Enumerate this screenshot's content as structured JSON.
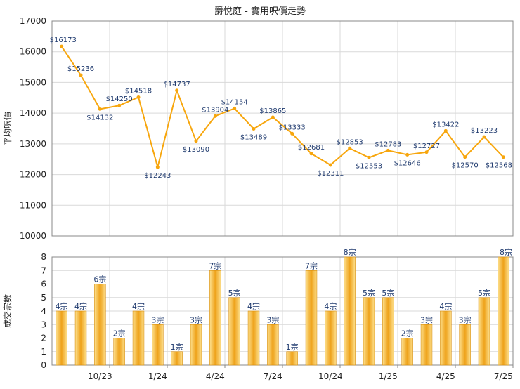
{
  "colors": {
    "line": "#f7a60d",
    "bar_light": "#fde08e",
    "bar_dark": "#eea21a",
    "bar_stroke": "#d88e0c",
    "grid": "#d9d9d9",
    "axis": "#888888",
    "text": "#222222",
    "label_blue": "#1f3a6e"
  },
  "chart_data": [
    {
      "type": "line",
      "title": "爵悅庭 - 實用呎價走勢",
      "ylabel": "平均呎價",
      "ylim": [
        10000,
        17000
      ],
      "yticks": [
        10000,
        11000,
        12000,
        13000,
        14000,
        15000,
        16000,
        17000
      ],
      "grid": true,
      "values": [
        16173,
        15236,
        14132,
        14250,
        14518,
        12243,
        14737,
        13090,
        13904,
        14154,
        13489,
        13865,
        13333,
        12681,
        12311,
        12853,
        12553,
        12783,
        12646,
        12727,
        13422,
        12570,
        13223,
        12568
      ],
      "labels": [
        "$16173",
        "$15236",
        "$14132",
        "$14250",
        "$14518",
        "$12243",
        "$14737",
        "$13090",
        "$13904",
        "$14154",
        "$13489",
        "$13865",
        "$13333",
        "$12681",
        "$12311",
        "$12853",
        "$12553",
        "$12783",
        "$12646",
        "$12727",
        "$13422",
        "$12570",
        "$13223",
        "$12568"
      ]
    },
    {
      "type": "bar",
      "ylabel": "成交宗數",
      "ylim": [
        0,
        8
      ],
      "yticks": [
        0,
        1,
        2,
        3,
        4,
        5,
        6,
        7,
        8
      ],
      "grid": true,
      "values": [
        4,
        4,
        6,
        2,
        4,
        3,
        1,
        3,
        7,
        5,
        4,
        3,
        1,
        7,
        4,
        8,
        5,
        5,
        2,
        3,
        4,
        3,
        5,
        8
      ],
      "labels": [
        "4宗",
        "4宗",
        "6宗",
        "2宗",
        "4宗",
        "3宗",
        "1宗",
        "3宗",
        "7宗",
        "5宗",
        "4宗",
        "3宗",
        "1宗",
        "7宗",
        "4宗",
        "8宗",
        "5宗",
        "5宗",
        "2宗",
        "3宗",
        "4宗",
        "3宗",
        "5宗",
        "8宗"
      ],
      "xticks": [
        {
          "index": 2,
          "label": "10/23"
        },
        {
          "index": 5,
          "label": "1/24"
        },
        {
          "index": 8,
          "label": "4/24"
        },
        {
          "index": 11,
          "label": "7/24"
        },
        {
          "index": 14,
          "label": "10/24"
        },
        {
          "index": 17,
          "label": "1/25"
        },
        {
          "index": 20,
          "label": "4/25"
        },
        {
          "index": 23,
          "label": "7/25"
        }
      ]
    }
  ]
}
